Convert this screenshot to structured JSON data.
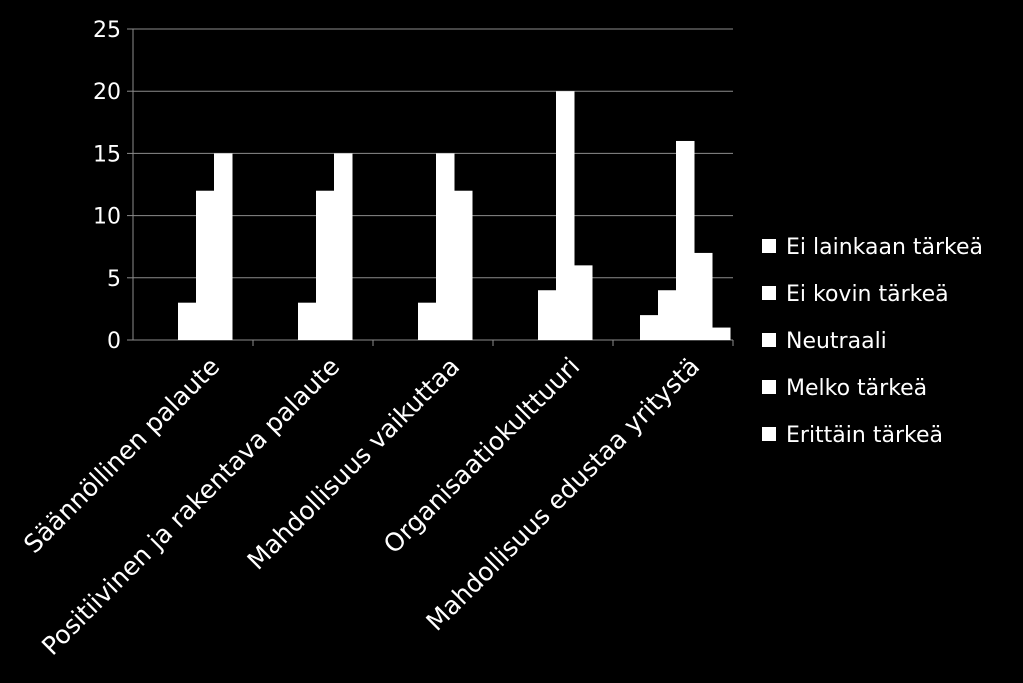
{
  "chart_data": {
    "type": "bar",
    "title": "",
    "xlabel": "",
    "ylabel": "",
    "ylim": [
      0,
      25
    ],
    "yticks": [
      0,
      5,
      10,
      15,
      20,
      25
    ],
    "grid": true,
    "legend_position": "right",
    "categories": [
      "Säännöllinen palaute",
      "Positiivinen ja rakentava palaute",
      "Mahdollisuus vaikuttaa",
      "Organisaatiokulttuuri",
      "Mahdollisuus edustaa yritystä"
    ],
    "series": [
      {
        "name": "Ei lainkaan tärkeä",
        "values": [
          0,
          0,
          0,
          0,
          2
        ]
      },
      {
        "name": "Ei kovin tärkeä",
        "values": [
          3,
          3,
          3,
          4,
          4
        ]
      },
      {
        "name": "Neutraali",
        "values": [
          12,
          12,
          15,
          20,
          16
        ]
      },
      {
        "name": "Melko tärkeä",
        "values": [
          15,
          15,
          12,
          6,
          7
        ]
      },
      {
        "name": "Erittäin tärkeä",
        "values": [
          0,
          0,
          0,
          0,
          1
        ]
      }
    ],
    "colors": {
      "background": "#000000",
      "bars": "#ffffff",
      "gridlines": "#8c8c8c",
      "text": "#ffffff"
    }
  }
}
